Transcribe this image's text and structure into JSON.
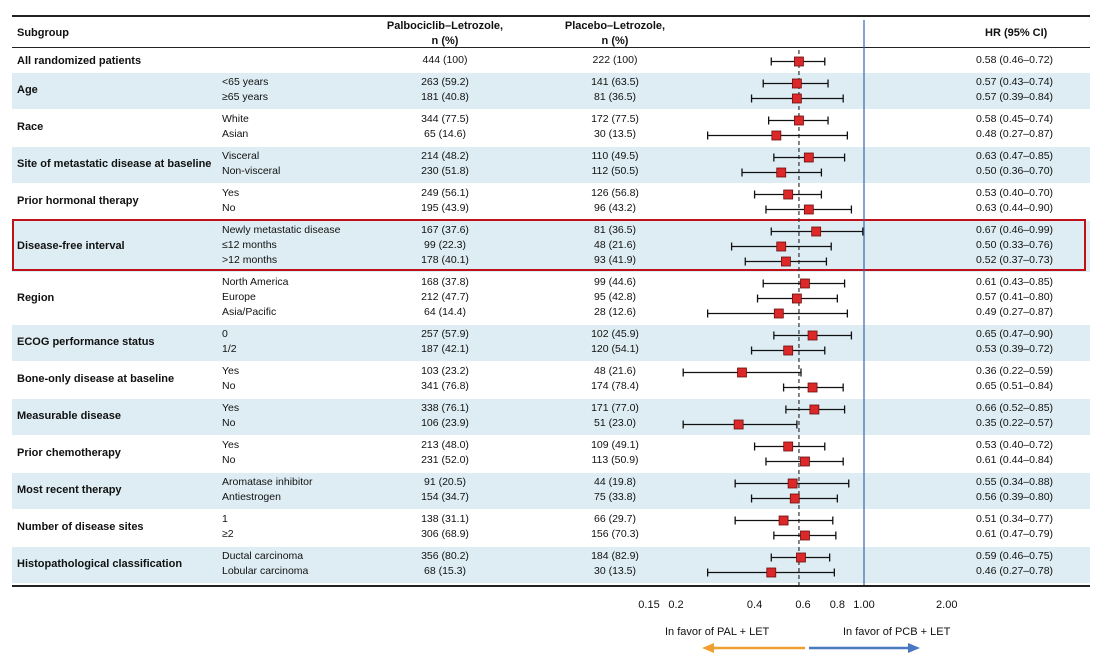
{
  "chart_data": {
    "type": "forest",
    "headers": {
      "subgroup": "Subgroup",
      "pal_line1": "Palbociclib–Letrozole,",
      "pal_line2": "n (%)",
      "pcb_line1": "Placebo–Letrozole,",
      "pcb_line2": "n (%)",
      "hr": "HR (95% CI)"
    },
    "xscale": "log",
    "xlim": [
      0.15,
      2.0
    ],
    "xticks": [
      {
        "label": "0.15",
        "value": 0.15
      },
      {
        "label": "0.2",
        "value": 0.2
      },
      {
        "label": "0.4",
        "value": 0.4
      },
      {
        "label": "0.6",
        "value": 0.6
      },
      {
        "label": "0.8",
        "value": 0.8
      },
      {
        "label": "1.00",
        "value": 1.0
      },
      {
        "label": "2.00",
        "value": 2.0
      }
    ],
    "reference_line": 1.0,
    "overall_line": 0.58,
    "favor_left": "In favor of PAL + LET",
    "favor_right": "In favor of PCB + LET",
    "arrow_left_color": "#f0a030",
    "arrow_right_color": "#4a78c0",
    "marker_color": "#dc2828",
    "band_color": "#ddedf3",
    "highlight_color": "#c0101a",
    "highlight_group": "Disease-free interval",
    "groups": [
      {
        "label": "All randomized patients",
        "rows": [
          {
            "sub": "",
            "pal": "444 (100)",
            "pcb": "222 (100)",
            "hr_text": "0.58 (0.46–0.72)",
            "hr": 0.58,
            "lo": 0.46,
            "hi": 0.72
          }
        ]
      },
      {
        "label": "Age",
        "rows": [
          {
            "sub": "<65 years",
            "pal": "263 (59.2)",
            "pcb": "141 (63.5)",
            "hr_text": "0.57 (0.43–0.74)",
            "hr": 0.57,
            "lo": 0.43,
            "hi": 0.74
          },
          {
            "sub": "≥65 years",
            "pal": "181 (40.8)",
            "pcb": "81 (36.5)",
            "hr_text": "0.57 (0.39–0.84)",
            "hr": 0.57,
            "lo": 0.39,
            "hi": 0.84
          }
        ]
      },
      {
        "label": "Race",
        "rows": [
          {
            "sub": "White",
            "pal": "344 (77.5)",
            "pcb": "172 (77.5)",
            "hr_text": "0.58 (0.45–0.74)",
            "hr": 0.58,
            "lo": 0.45,
            "hi": 0.74
          },
          {
            "sub": "Asian",
            "pal": "65 (14.6)",
            "pcb": "30 (13.5)",
            "hr_text": "0.48 (0.27–0.87)",
            "hr": 0.48,
            "lo": 0.27,
            "hi": 0.87
          }
        ]
      },
      {
        "label": "Site of metastatic disease at baseline",
        "rows": [
          {
            "sub": "Visceral",
            "pal": "214 (48.2)",
            "pcb": "110 (49.5)",
            "hr_text": "0.63 (0.47–0.85)",
            "hr": 0.63,
            "lo": 0.47,
            "hi": 0.85
          },
          {
            "sub": "Non-visceral",
            "pal": "230 (51.8)",
            "pcb": "112 (50.5)",
            "hr_text": "0.50 (0.36–0.70)",
            "hr": 0.5,
            "lo": 0.36,
            "hi": 0.7
          }
        ]
      },
      {
        "label": "Prior hormonal therapy",
        "rows": [
          {
            "sub": "Yes",
            "pal": "249 (56.1)",
            "pcb": "126 (56.8)",
            "hr_text": "0.53 (0.40–0.70)",
            "hr": 0.53,
            "lo": 0.4,
            "hi": 0.7
          },
          {
            "sub": "No",
            "pal": "195 (43.9)",
            "pcb": "96 (43.2)",
            "hr_text": "0.63 (0.44–0.90)",
            "hr": 0.63,
            "lo": 0.44,
            "hi": 0.9
          }
        ]
      },
      {
        "label": "Disease-free interval",
        "rows": [
          {
            "sub": "Newly metastatic disease",
            "pal": "167 (37.6)",
            "pcb": "81 (36.5)",
            "hr_text": "0.67 (0.46–0.99)",
            "hr": 0.67,
            "lo": 0.46,
            "hi": 0.99
          },
          {
            "sub": "≤12 months",
            "pal": "99 (22.3)",
            "pcb": "48 (21.6)",
            "hr_text": "0.50 (0.33–0.76)",
            "hr": 0.5,
            "lo": 0.33,
            "hi": 0.76
          },
          {
            "sub": ">12 months",
            "pal": "178 (40.1)",
            "pcb": "93 (41.9)",
            "hr_text": "0.52 (0.37–0.73)",
            "hr": 0.52,
            "lo": 0.37,
            "hi": 0.73
          }
        ]
      },
      {
        "label": "Region",
        "rows": [
          {
            "sub": "North America",
            "pal": "168 (37.8)",
            "pcb": "99 (44.6)",
            "hr_text": "0.61 (0.43–0.85)",
            "hr": 0.61,
            "lo": 0.43,
            "hi": 0.85
          },
          {
            "sub": "Europe",
            "pal": "212 (47.7)",
            "pcb": "95 (42.8)",
            "hr_text": "0.57 (0.41–0.80)",
            "hr": 0.57,
            "lo": 0.41,
            "hi": 0.8
          },
          {
            "sub": "Asia/Pacific",
            "pal": "64 (14.4)",
            "pcb": "28 (12.6)",
            "hr_text": "0.49 (0.27–0.87)",
            "hr": 0.49,
            "lo": 0.27,
            "hi": 0.87
          }
        ]
      },
      {
        "label": "ECOG performance status",
        "rows": [
          {
            "sub": "0",
            "pal": "257 (57.9)",
            "pcb": "102 (45.9)",
            "hr_text": "0.65 (0.47–0.90)",
            "hr": 0.65,
            "lo": 0.47,
            "hi": 0.9
          },
          {
            "sub": "1/2",
            "pal": "187 (42.1)",
            "pcb": "120 (54.1)",
            "hr_text": "0.53 (0.39–0.72)",
            "hr": 0.53,
            "lo": 0.39,
            "hi": 0.72
          }
        ]
      },
      {
        "label": "Bone-only disease at baseline",
        "rows": [
          {
            "sub": "Yes",
            "pal": "103 (23.2)",
            "pcb": "48 (21.6)",
            "hr_text": "0.36 (0.22–0.59)",
            "hr": 0.36,
            "lo": 0.22,
            "hi": 0.59
          },
          {
            "sub": "No",
            "pal": "341 (76.8)",
            "pcb": "174 (78.4)",
            "hr_text": "0.65 (0.51–0.84)",
            "hr": 0.65,
            "lo": 0.51,
            "hi": 0.84
          }
        ]
      },
      {
        "label": "Measurable disease",
        "rows": [
          {
            "sub": "Yes",
            "pal": "338 (76.1)",
            "pcb": "171 (77.0)",
            "hr_text": "0.66 (0.52–0.85)",
            "hr": 0.66,
            "lo": 0.52,
            "hi": 0.85
          },
          {
            "sub": "No",
            "pal": "106 (23.9)",
            "pcb": "51 (23.0)",
            "hr_text": "0.35 (0.22–0.57)",
            "hr": 0.35,
            "lo": 0.22,
            "hi": 0.57
          }
        ]
      },
      {
        "label": "Prior chemotherapy",
        "rows": [
          {
            "sub": "Yes",
            "pal": "213 (48.0)",
            "pcb": "109 (49.1)",
            "hr_text": "0.53 (0.40–0.72)",
            "hr": 0.53,
            "lo": 0.4,
            "hi": 0.72
          },
          {
            "sub": "No",
            "pal": "231 (52.0)",
            "pcb": "113 (50.9)",
            "hr_text": "0.61 (0.44–0.84)",
            "hr": 0.61,
            "lo": 0.44,
            "hi": 0.84
          }
        ]
      },
      {
        "label": "Most recent therapy",
        "rows": [
          {
            "sub": "Aromatase inhibitor",
            "pal": "91 (20.5)",
            "pcb": "44 (19.8)",
            "hr_text": "0.55 (0.34–0.88)",
            "hr": 0.55,
            "lo": 0.34,
            "hi": 0.88
          },
          {
            "sub": "Antiestrogen",
            "pal": "154 (34.7)",
            "pcb": "75 (33.8)",
            "hr_text": "0.56 (0.39–0.80)",
            "hr": 0.56,
            "lo": 0.39,
            "hi": 0.8
          }
        ]
      },
      {
        "label": "Number of disease sites",
        "rows": [
          {
            "sub": "1",
            "pal": "138 (31.1)",
            "pcb": "66 (29.7)",
            "hr_text": "0.51 (0.34–0.77)",
            "hr": 0.51,
            "lo": 0.34,
            "hi": 0.77
          },
          {
            "sub": "≥2",
            "pal": "306 (68.9)",
            "pcb": "156 (70.3)",
            "hr_text": "0.61 (0.47–0.79)",
            "hr": 0.61,
            "lo": 0.47,
            "hi": 0.79
          }
        ]
      },
      {
        "label": "Histopathological classification",
        "rows": [
          {
            "sub": "Ductal carcinoma",
            "pal": "356 (80.2)",
            "pcb": "184 (82.9)",
            "hr_text": "0.59 (0.46–0.75)",
            "hr": 0.59,
            "lo": 0.46,
            "hi": 0.75
          },
          {
            "sub": "Lobular carcinoma",
            "pal": "68 (15.3)",
            "pcb": "30 (13.5)",
            "hr_text": "0.46 (0.27–0.78)",
            "hr": 0.46,
            "lo": 0.27,
            "hi": 0.78
          }
        ]
      }
    ]
  }
}
